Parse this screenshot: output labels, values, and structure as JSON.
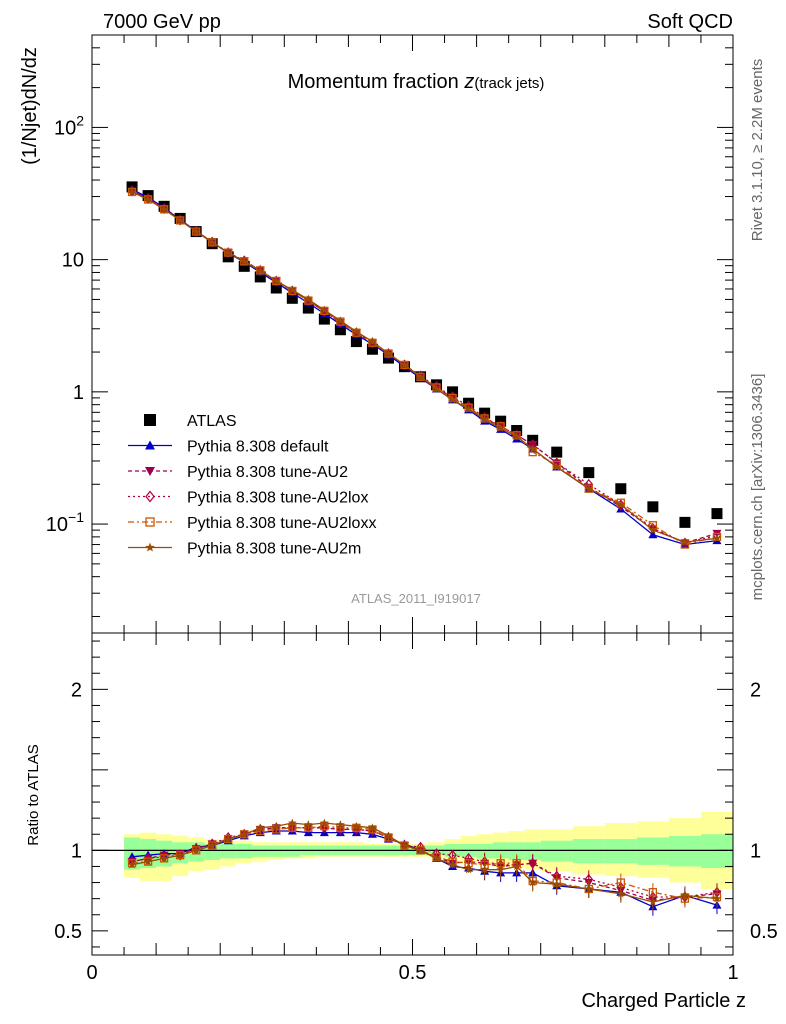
{
  "header": {
    "left": "7000 GeV pp",
    "right": "Soft QCD"
  },
  "side_labels": {
    "rivet": "Rivet 3.1.10, ≥ 2.2M events",
    "mcplots": "mcplots.cern.ch [arXiv:1306.3436]"
  },
  "analysis_id": "ATLAS_2011_I919017",
  "colors": {
    "data": "#000000",
    "default": "#0000cc",
    "au2": "#99004d",
    "au2lox": "#b3003b",
    "au2loxx": "#cc5500",
    "au2m": "#994d00",
    "band_inner": "#99ff99",
    "band_outer": "#ffff99"
  },
  "chart_data": [
    {
      "type": "scatter",
      "panel": "main",
      "title_main": "Momentum fraction ",
      "title_var": "z",
      "title_sub": "(track jets)",
      "ylabel": "(1/Njet)dN/dz",
      "yscale": "log",
      "ylim": [
        0.015,
        500
      ],
      "xlim": [
        0,
        1
      ],
      "yticks": [
        {
          "v": 100,
          "base": "10",
          "exp": "2"
        },
        {
          "v": 10,
          "base": "10",
          "exp": ""
        },
        {
          "v": 1,
          "base": "1",
          "exp": ""
        },
        {
          "v": 0.1,
          "base": "10",
          "exp": "−1"
        }
      ],
      "legend_position": "lower-left",
      "x": [
        0.0625,
        0.0875,
        0.1125,
        0.1375,
        0.1625,
        0.1875,
        0.2125,
        0.2375,
        0.2625,
        0.2875,
        0.3125,
        0.3375,
        0.3625,
        0.3875,
        0.4125,
        0.4375,
        0.4625,
        0.4875,
        0.5125,
        0.5375,
        0.5625,
        0.5875,
        0.6125,
        0.6375,
        0.6625,
        0.6875,
        0.725,
        0.775,
        0.825,
        0.875,
        0.925,
        0.975
      ],
      "series": [
        {
          "name": "ATLAS",
          "key": "data",
          "marker": "square",
          "dash": "none",
          "values": [
            35.5,
            30.5,
            25.3,
            20.5,
            16.3,
            13.2,
            10.5,
            8.9,
            7.4,
            6.1,
            5.1,
            4.3,
            3.55,
            2.95,
            2.4,
            2.1,
            1.8,
            1.55,
            1.3,
            1.13,
            1.0,
            0.82,
            0.69,
            0.6,
            0.51,
            0.43,
            0.35,
            0.245,
            0.185,
            0.135,
            0.103,
            0.12
          ]
        },
        {
          "name": "Pythia 8.308 default",
          "key": "default",
          "marker": "triangle-up",
          "dash": "none",
          "values": [
            34.0,
            29.5,
            24.7,
            20.0,
            16.5,
            13.5,
            11.2,
            9.6,
            8.0,
            6.7,
            5.6,
            4.7,
            3.9,
            3.25,
            2.7,
            2.3,
            1.9,
            1.55,
            1.27,
            1.05,
            0.87,
            0.73,
            0.6,
            0.52,
            0.44,
            0.37,
            0.27,
            0.185,
            0.13,
            0.083,
            0.07,
            0.075
          ]
        },
        {
          "name": "Pythia 8.308 tune-AU2",
          "key": "au2",
          "marker": "triangle-down",
          "dash": "4,3",
          "values": [
            33.0,
            29.0,
            24.3,
            19.8,
            16.4,
            13.6,
            11.3,
            9.8,
            8.3,
            6.9,
            5.8,
            4.9,
            4.05,
            3.35,
            2.8,
            2.35,
            1.95,
            1.58,
            1.3,
            1.08,
            0.9,
            0.76,
            0.63,
            0.55,
            0.47,
            0.4,
            0.29,
            0.19,
            0.135,
            0.092,
            0.072,
            0.085
          ]
        },
        {
          "name": "Pythia 8.308 tune-AU2lox",
          "key": "au2lox",
          "marker": "diamond-open",
          "dash": "2,3",
          "values": [
            33.0,
            29.0,
            24.3,
            19.9,
            16.4,
            13.6,
            11.3,
            9.8,
            8.3,
            6.9,
            5.8,
            4.9,
            4.05,
            3.35,
            2.8,
            2.35,
            1.95,
            1.6,
            1.32,
            1.1,
            0.92,
            0.78,
            0.64,
            0.55,
            0.47,
            0.4,
            0.29,
            0.2,
            0.14,
            0.093,
            0.072,
            0.082
          ]
        },
        {
          "name": "Pythia 8.308 tune-AU2loxx",
          "key": "au2loxx",
          "marker": "square-open",
          "dash": "6,3,2,3",
          "values": [
            32.5,
            28.5,
            24.0,
            19.8,
            16.3,
            13.5,
            11.3,
            9.7,
            8.3,
            6.9,
            5.8,
            4.9,
            4.1,
            3.4,
            2.8,
            2.35,
            1.95,
            1.6,
            1.3,
            1.08,
            0.9,
            0.76,
            0.63,
            0.55,
            0.47,
            0.35,
            0.28,
            0.185,
            0.145,
            0.098,
            0.07,
            0.08
          ]
        },
        {
          "name": "Pythia 8.308 tune-AU2m",
          "key": "au2m",
          "marker": "star",
          "dash": "none",
          "values": [
            32.5,
            28.5,
            24.0,
            19.8,
            16.3,
            13.5,
            11.3,
            9.7,
            8.2,
            6.9,
            5.9,
            5.0,
            4.15,
            3.45,
            2.85,
            2.4,
            1.95,
            1.6,
            1.3,
            1.05,
            0.87,
            0.74,
            0.62,
            0.53,
            0.46,
            0.37,
            0.27,
            0.185,
            0.14,
            0.09,
            0.073,
            0.078
          ]
        }
      ]
    },
    {
      "type": "scatter",
      "panel": "ratio",
      "ylabel": "Ratio to ATLAS",
      "xlabel": "Charged Particle z",
      "ylim": [
        0.35,
        2.35
      ],
      "xlim": [
        0,
        1
      ],
      "yticks": [
        {
          "v": 0.5,
          "label": "0.5"
        },
        {
          "v": 1,
          "label": "1"
        },
        {
          "v": 2,
          "label": "2"
        }
      ],
      "xticks": [
        {
          "v": 0,
          "label": "0"
        },
        {
          "v": 0.5,
          "label": "0.5"
        },
        {
          "v": 1,
          "label": "1"
        }
      ],
      "reference_line": 1,
      "band": {
        "edges": [
          0.05,
          0.075,
          0.1,
          0.125,
          0.15,
          0.175,
          0.2,
          0.225,
          0.25,
          0.275,
          0.3,
          0.325,
          0.35,
          0.375,
          0.4,
          0.425,
          0.45,
          0.475,
          0.5,
          0.525,
          0.55,
          0.575,
          0.6,
          0.625,
          0.65,
          0.675,
          0.7,
          0.75,
          0.8,
          0.85,
          0.9,
          0.95,
          1.0
        ],
        "inner_lo": [
          0.88,
          0.89,
          0.9,
          0.92,
          0.93,
          0.94,
          0.95,
          0.95,
          0.96,
          0.96,
          0.96,
          0.97,
          0.97,
          0.97,
          0.97,
          0.97,
          0.97,
          0.97,
          0.97,
          0.97,
          0.96,
          0.96,
          0.95,
          0.95,
          0.94,
          0.94,
          0.93,
          0.92,
          0.92,
          0.91,
          0.9,
          0.89
        ],
        "inner_hi": [
          1.08,
          1.07,
          1.06,
          1.05,
          1.05,
          1.04,
          1.04,
          1.04,
          1.03,
          1.03,
          1.03,
          1.03,
          1.03,
          1.03,
          1.03,
          1.03,
          1.03,
          1.03,
          1.03,
          1.03,
          1.04,
          1.04,
          1.04,
          1.05,
          1.05,
          1.05,
          1.06,
          1.07,
          1.07,
          1.08,
          1.09,
          1.1
        ],
        "outer_lo": [
          0.83,
          0.81,
          0.81,
          0.84,
          0.87,
          0.88,
          0.9,
          0.92,
          0.93,
          0.94,
          0.95,
          0.95,
          0.96,
          0.96,
          0.96,
          0.96,
          0.96,
          0.96,
          0.96,
          0.95,
          0.94,
          0.92,
          0.91,
          0.9,
          0.89,
          0.88,
          0.87,
          0.85,
          0.84,
          0.83,
          0.8,
          0.76
        ],
        "outer_hi": [
          1.1,
          1.11,
          1.1,
          1.09,
          1.08,
          1.07,
          1.06,
          1.06,
          1.05,
          1.05,
          1.05,
          1.05,
          1.05,
          1.05,
          1.05,
          1.04,
          1.04,
          1.04,
          1.04,
          1.05,
          1.07,
          1.09,
          1.1,
          1.11,
          1.12,
          1.13,
          1.13,
          1.15,
          1.17,
          1.18,
          1.2,
          1.24
        ]
      },
      "series": [
        {
          "name": "Pythia 8.308 default",
          "key": "default",
          "marker": "triangle-up",
          "dash": "none",
          "values": [
            0.96,
            0.97,
            0.98,
            0.98,
            1.02,
            1.03,
            1.06,
            1.09,
            1.11,
            1.12,
            1.12,
            1.11,
            1.11,
            1.11,
            1.11,
            1.1,
            1.07,
            1.04,
            1.0,
            0.95,
            0.9,
            0.89,
            0.87,
            0.86,
            0.86,
            0.86,
            0.78,
            0.76,
            0.74,
            0.65,
            0.72,
            0.66
          ]
        },
        {
          "name": "Pythia 8.308 tune-AU2",
          "key": "au2",
          "marker": "triangle-down",
          "dash": "4,3",
          "values": [
            0.93,
            0.95,
            0.97,
            0.98,
            1.01,
            1.04,
            1.07,
            1.1,
            1.13,
            1.14,
            1.14,
            1.14,
            1.14,
            1.13,
            1.13,
            1.12,
            1.08,
            1.03,
            1.0,
            0.96,
            0.92,
            0.93,
            0.92,
            0.9,
            0.91,
            0.92,
            0.83,
            0.8,
            0.75,
            0.69,
            0.71,
            0.73
          ]
        },
        {
          "name": "Pythia 8.308 tune-AU2lox",
          "key": "au2lox",
          "marker": "diamond-open",
          "dash": "2,3",
          "values": [
            0.93,
            0.95,
            0.96,
            0.97,
            1.01,
            1.04,
            1.08,
            1.1,
            1.13,
            1.14,
            1.14,
            1.14,
            1.14,
            1.13,
            1.13,
            1.12,
            1.08,
            1.03,
            1.02,
            0.98,
            0.97,
            0.95,
            0.93,
            0.91,
            0.91,
            0.92,
            0.84,
            0.82,
            0.77,
            0.71,
            0.71,
            0.74
          ]
        },
        {
          "name": "Pythia 8.308 tune-AU2loxx",
          "key": "au2loxx",
          "marker": "square-open",
          "dash": "6,3,2,3",
          "values": [
            0.92,
            0.93,
            0.95,
            0.97,
            1.0,
            1.03,
            1.07,
            1.1,
            1.12,
            1.13,
            1.14,
            1.14,
            1.15,
            1.14,
            1.14,
            1.13,
            1.08,
            1.03,
            1.0,
            0.96,
            0.93,
            0.92,
            0.91,
            0.92,
            0.92,
            0.81,
            0.8,
            0.76,
            0.8,
            0.74,
            0.7,
            0.71
          ]
        },
        {
          "name": "Pythia 8.308 tune-AU2m",
          "key": "au2m",
          "marker": "star",
          "dash": "none",
          "values": [
            0.91,
            0.93,
            0.95,
            0.97,
            1.0,
            1.03,
            1.07,
            1.1,
            1.14,
            1.15,
            1.17,
            1.16,
            1.17,
            1.16,
            1.15,
            1.14,
            1.09,
            1.03,
            1.0,
            0.95,
            0.91,
            0.88,
            0.88,
            0.88,
            0.9,
            0.8,
            0.79,
            0.76,
            0.73,
            0.68,
            0.72,
            0.7
          ]
        }
      ]
    }
  ]
}
